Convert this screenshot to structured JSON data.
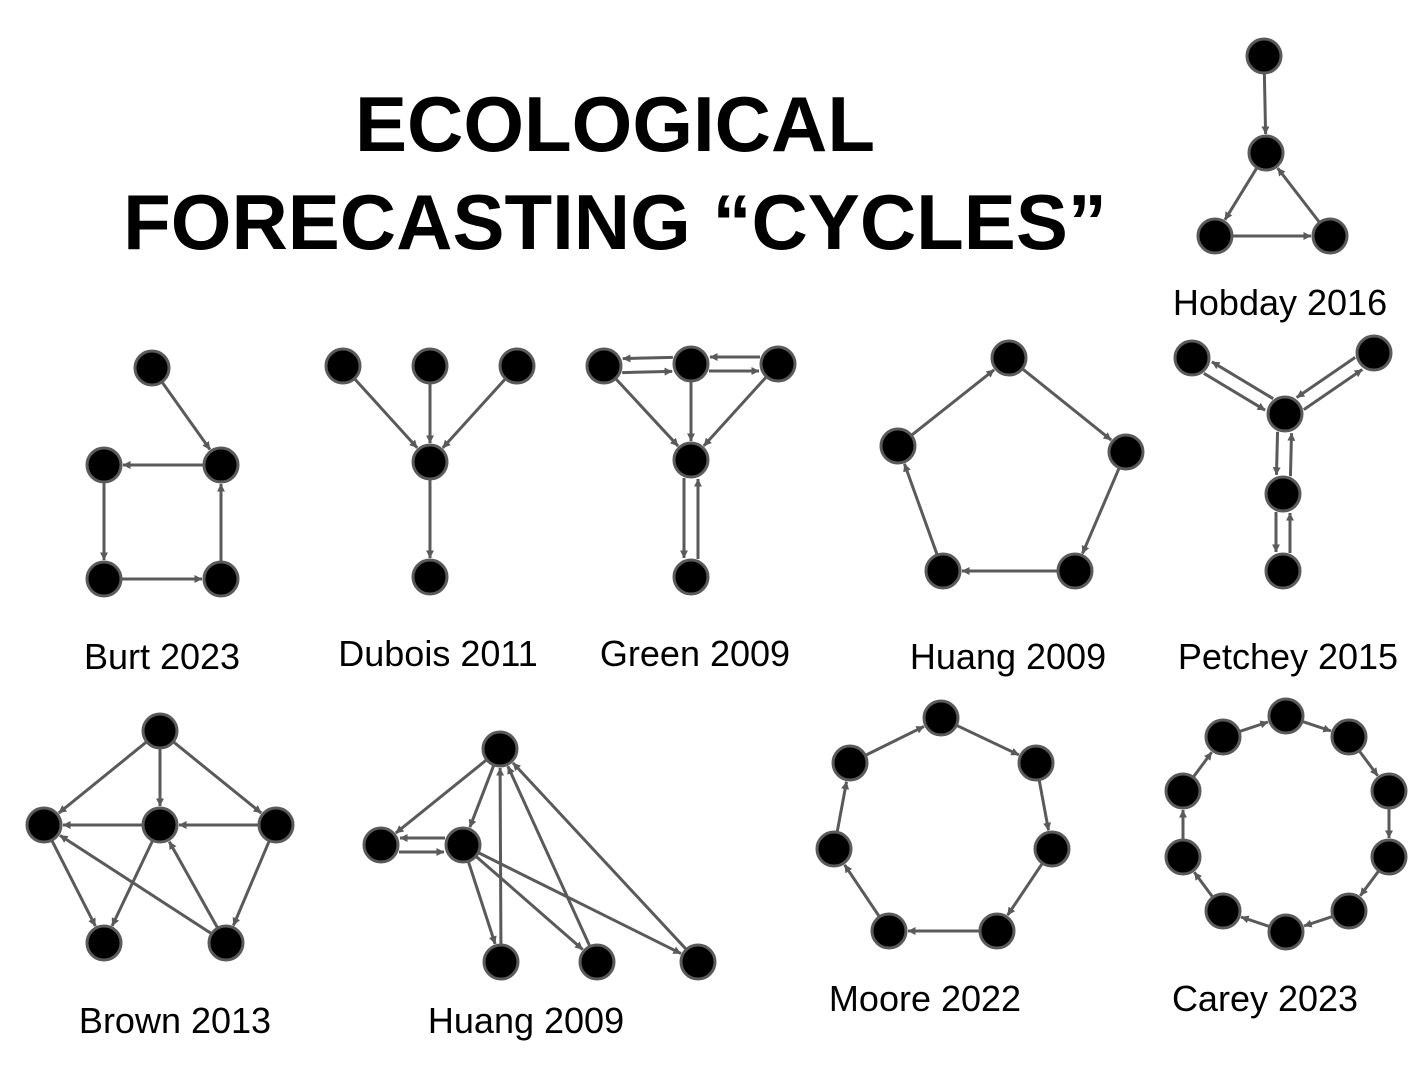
{
  "title": {
    "line1": "ECOLOGICAL",
    "line2": "FORECASTING “CYCLES”"
  },
  "colors": {
    "node_fill": "#000000",
    "node_stroke": "#5a5a5a",
    "edge": "#5a5a5a"
  },
  "diagrams": [
    {
      "id": "hobday-2016",
      "label": "Hobday 2016",
      "nodes": [
        "a",
        "b",
        "c",
        "d"
      ],
      "edges": [
        [
          "a",
          "b"
        ],
        [
          "b",
          "c"
        ],
        [
          "c",
          "d"
        ],
        [
          "d",
          "b"
        ]
      ]
    },
    {
      "id": "burt-2023",
      "label": "Burt 2023",
      "nodes": [
        "a",
        "b",
        "c",
        "d",
        "e"
      ],
      "edges": [
        [
          "a",
          "b"
        ],
        [
          "b",
          "c"
        ],
        [
          "c",
          "d"
        ],
        [
          "d",
          "e"
        ],
        [
          "e",
          "b"
        ]
      ]
    },
    {
      "id": "dubois-2011",
      "label": "Dubois 2011",
      "nodes": [
        "a",
        "b",
        "c",
        "d",
        "e"
      ],
      "edges": [
        [
          "a",
          "d"
        ],
        [
          "b",
          "d"
        ],
        [
          "c",
          "d"
        ],
        [
          "d",
          "e"
        ]
      ]
    },
    {
      "id": "green-2009",
      "label": "Green 2009",
      "nodes": [
        "a",
        "b",
        "c",
        "d",
        "e"
      ],
      "edges": [
        [
          "a",
          "b"
        ],
        [
          "b",
          "a"
        ],
        [
          "b",
          "c"
        ],
        [
          "c",
          "b"
        ],
        [
          "a",
          "d"
        ],
        [
          "b",
          "d"
        ],
        [
          "c",
          "d"
        ],
        [
          "d",
          "e"
        ],
        [
          "e",
          "d"
        ]
      ]
    },
    {
      "id": "huang-2009-a",
      "label": "Huang 2009",
      "nodes": [
        "a",
        "b",
        "c",
        "d",
        "e"
      ],
      "edges": [
        [
          "a",
          "b"
        ],
        [
          "b",
          "c"
        ],
        [
          "c",
          "d"
        ],
        [
          "d",
          "e"
        ],
        [
          "e",
          "a"
        ]
      ]
    },
    {
      "id": "petchey-2015",
      "label": "Petchey 2015",
      "nodes": [
        "a",
        "b",
        "c",
        "d",
        "e"
      ],
      "edges": [
        [
          "a",
          "c"
        ],
        [
          "c",
          "a"
        ],
        [
          "b",
          "c"
        ],
        [
          "c",
          "b"
        ],
        [
          "c",
          "d"
        ],
        [
          "d",
          "c"
        ],
        [
          "d",
          "e"
        ],
        [
          "e",
          "d"
        ]
      ]
    },
    {
      "id": "brown-2013",
      "label": "Brown 2013",
      "nodes": [
        "a",
        "b",
        "c",
        "d",
        "e",
        "f"
      ],
      "edges": [
        [
          "a",
          "b"
        ],
        [
          "a",
          "c"
        ],
        [
          "a",
          "d"
        ],
        [
          "c",
          "b"
        ],
        [
          "d",
          "c"
        ],
        [
          "b",
          "e"
        ],
        [
          "c",
          "e"
        ],
        [
          "d",
          "f"
        ],
        [
          "f",
          "c"
        ],
        [
          "f",
          "b"
        ]
      ]
    },
    {
      "id": "huang-2009-b",
      "label": "Huang 2009",
      "nodes": [
        "a",
        "b",
        "c",
        "d",
        "e",
        "f"
      ],
      "edges": [
        [
          "a",
          "b"
        ],
        [
          "b",
          "c"
        ],
        [
          "c",
          "b"
        ],
        [
          "a",
          "c"
        ],
        [
          "c",
          "d"
        ],
        [
          "d",
          "a"
        ],
        [
          "c",
          "e"
        ],
        [
          "e",
          "a"
        ],
        [
          "c",
          "f"
        ],
        [
          "f",
          "a"
        ]
      ]
    },
    {
      "id": "moore-2022",
      "label": "Moore 2022",
      "nodes": [
        "a",
        "b",
        "c",
        "d",
        "e",
        "f",
        "g"
      ],
      "edges": [
        [
          "a",
          "b"
        ],
        [
          "b",
          "c"
        ],
        [
          "c",
          "d"
        ],
        [
          "d",
          "e"
        ],
        [
          "e",
          "f"
        ],
        [
          "f",
          "g"
        ],
        [
          "g",
          "a"
        ]
      ]
    },
    {
      "id": "carey-2023",
      "label": "Carey 2023",
      "nodes": [
        "a",
        "b",
        "c",
        "d",
        "e",
        "f",
        "g",
        "h",
        "i",
        "j"
      ],
      "edges": [
        [
          "a",
          "b"
        ],
        [
          "b",
          "c"
        ],
        [
          "c",
          "d"
        ],
        [
          "d",
          "e"
        ],
        [
          "e",
          "f"
        ],
        [
          "f",
          "g"
        ],
        [
          "g",
          "h"
        ],
        [
          "h",
          "i"
        ],
        [
          "i",
          "j"
        ],
        [
          "j",
          "a"
        ]
      ]
    }
  ]
}
